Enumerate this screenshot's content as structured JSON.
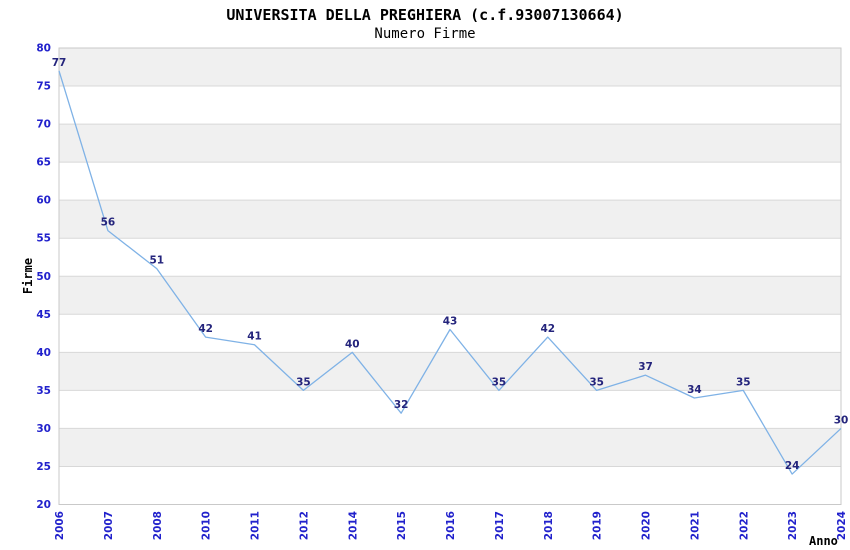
{
  "title": "UNIVERSITA DELLA PREGHIERA (c.f.93007130664)",
  "subtitle": "Numero Firme",
  "chart_data": {
    "type": "line",
    "x": [
      "2006",
      "2007",
      "2008",
      "2010",
      "2011",
      "2012",
      "2014",
      "2015",
      "2016",
      "2017",
      "2018",
      "2019",
      "2020",
      "2021",
      "2022",
      "2023",
      "2024"
    ],
    "values": [
      77,
      56,
      51,
      42,
      41,
      35,
      40,
      32,
      43,
      35,
      42,
      35,
      37,
      34,
      35,
      24,
      30
    ],
    "xlabel": "Anno",
    "ylabel": "Firme",
    "ylim": [
      20,
      80
    ],
    "ytick_step": 5,
    "grid": true,
    "legend": "none",
    "data_labels": true,
    "colors": {
      "line": "#7fb2e6",
      "data_label": "#24247c",
      "tick_label": "#2121cc",
      "band": "#f0f0f0",
      "gridline": "#d8d8d8",
      "border": "#c9c9c9",
      "title": "#000000",
      "subtitle": "#3a3a3a",
      "axis_title": "#000000",
      "background": "#ffffff"
    }
  }
}
